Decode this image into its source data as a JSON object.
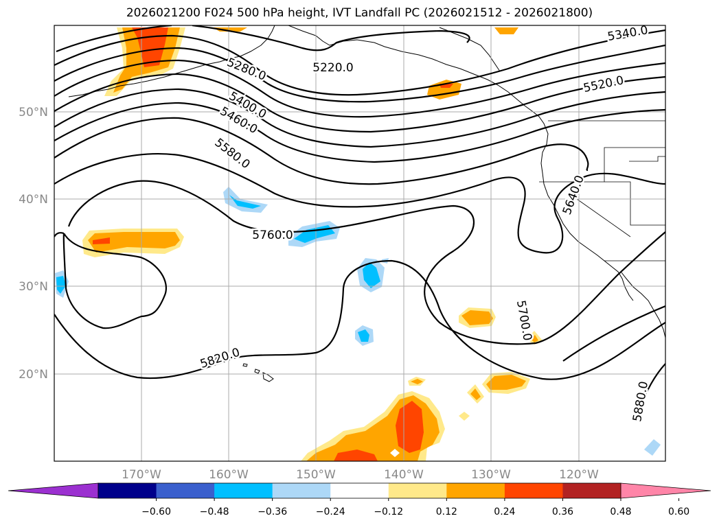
{
  "title": "2026021200 F024 500 hPa height, IVT Landfall PC (2026021512 - 2026021800)",
  "lon_ticks": [
    "170°W",
    "160°W",
    "150°W",
    "140°W",
    "130°W",
    "120°W"
  ],
  "lat_ticks": [
    "50°N",
    "40°N",
    "30°N",
    "20°N"
  ],
  "contour_labels": [
    "5340.0",
    "5280.0",
    "5220.0",
    "5520.0",
    "5400.0",
    "5460.0",
    "5580.0",
    "5640.0",
    "5760.0",
    "5700.0",
    "5820.0",
    "5880.0"
  ],
  "colorbar": {
    "ticks": [
      "−0.60",
      "−0.48",
      "−0.36",
      "−0.24",
      "−0.12",
      "0.12",
      "0.24",
      "0.36",
      "0.48",
      "0.60"
    ],
    "colors": [
      "#9b30d0",
      "#00008b",
      "#3a5fcd",
      "#00bfff",
      "#add8f7",
      "#ffffff",
      "#ffe98a",
      "#ffa500",
      "#ff4500",
      "#b22222",
      "#ff85a8"
    ]
  },
  "colors": {
    "contour": "#000000",
    "grid": "#aaaaaa",
    "land_outline": "#000000"
  }
}
